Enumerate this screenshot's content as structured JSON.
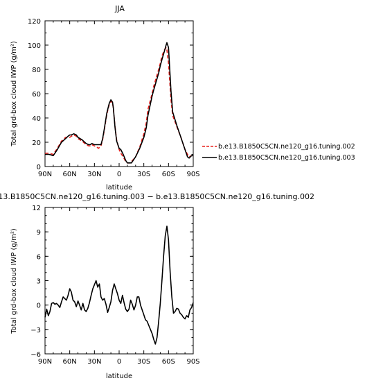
{
  "chart_data": [
    {
      "type": "line",
      "title": "JJA",
      "xlabel": "latitude",
      "ylabel": "Total grd-box cloud IWP (g/m²)",
      "xlim": [
        90,
        -90
      ],
      "ylim": [
        0,
        120
      ],
      "x_tick_values": [
        90,
        60,
        30,
        0,
        -30,
        -60,
        -90
      ],
      "x_tick_labels": [
        "90N",
        "60N",
        "30N",
        "0",
        "30S",
        "60S",
        "90S"
      ],
      "y_tick_labels": [
        "0",
        "20",
        "40",
        "60",
        "80",
        "100",
        "120"
      ],
      "legend_position": "right",
      "series": [
        {
          "name": "b.e13.B1850C5CN.ne120_g16.tuning.002",
          "color": "#e8201c",
          "dash": "dashed",
          "x": [
            90,
            85,
            80,
            78,
            75,
            70,
            65,
            62,
            60,
            58,
            55,
            52,
            50,
            45,
            40,
            37,
            35,
            33,
            30,
            27,
            25,
            22,
            20,
            18,
            15,
            12,
            10,
            8,
            7,
            6,
            5,
            3,
            0,
            -2,
            -5,
            -8,
            -10,
            -13,
            -15,
            -20,
            -25,
            -30,
            -33,
            -35,
            -40,
            -42,
            -45,
            -48,
            -50,
            -52,
            -55,
            -57,
            -58,
            -60,
            -63,
            -65,
            -70,
            -75,
            -80,
            -83,
            -85,
            -88,
            -90
          ],
          "y": [
            11,
            11,
            10,
            12,
            15,
            21,
            24,
            24,
            24,
            25,
            26,
            25,
            23,
            21,
            18,
            17,
            17,
            18,
            17,
            16,
            15,
            17,
            22,
            30,
            43,
            51,
            54,
            52,
            48,
            40,
            33,
            22,
            14,
            11,
            8,
            4,
            3,
            3,
            4,
            8,
            16,
            27,
            36,
            47,
            60,
            66,
            73,
            80,
            85,
            91,
            96,
            98,
            96,
            85,
            55,
            42,
            33,
            24,
            14,
            10,
            8,
            9,
            9
          ]
        },
        {
          "name": "b.e13.B1850C5CN.ne120_g16.tuning.003",
          "color": "#000000",
          "dash": "solid",
          "x": [
            90,
            85,
            80,
            78,
            75,
            70,
            65,
            62,
            60,
            58,
            55,
            52,
            50,
            45,
            40,
            37,
            35,
            33,
            30,
            27,
            25,
            22,
            20,
            18,
            15,
            12,
            10,
            8,
            7,
            6,
            5,
            3,
            0,
            -2,
            -5,
            -8,
            -10,
            -13,
            -15,
            -20,
            -25,
            -30,
            -33,
            -35,
            -40,
            -42,
            -45,
            -48,
            -50,
            -52,
            -55,
            -57,
            -58,
            -60,
            -63,
            -65,
            -70,
            -75,
            -80,
            -83,
            -85,
            -88,
            -90
          ],
          "y": [
            10,
            10,
            9,
            11,
            14,
            20,
            23,
            25,
            26,
            26,
            27,
            26,
            24,
            22,
            19,
            18,
            18,
            19,
            18,
            18,
            18,
            18,
            23,
            31,
            44,
            52,
            55,
            53,
            48,
            40,
            32,
            21,
            15,
            14,
            10,
            5,
            3,
            3,
            3,
            8,
            15,
            24,
            32,
            42,
            58,
            63,
            70,
            77,
            83,
            88,
            95,
            100,
            102,
            98,
            62,
            45,
            34,
            24,
            14,
            8,
            7,
            9,
            9
          ]
        }
      ]
    },
    {
      "type": "line",
      "title": "b.e13.B1850C5CN.ne120_g16.tuning.003 − b.e13.B1850C5CN.ne120_g16.tuning.002",
      "xlabel": "latitude",
      "ylabel": "Total grd-box cloud IWP (g/m²)",
      "xlim": [
        90,
        -90
      ],
      "ylim": [
        -6,
        12
      ],
      "x_tick_values": [
        90,
        60,
        30,
        0,
        -30,
        -60,
        -90
      ],
      "x_tick_labels": [
        "90N",
        "60N",
        "30N",
        "0",
        "30S",
        "60S",
        "90S"
      ],
      "y_tick_values": [
        -6,
        -3,
        0,
        3,
        6,
        9,
        12
      ],
      "y_tick_labels": [
        "−6",
        "−3",
        "0",
        "3",
        "6",
        "9",
        "12"
      ],
      "series": [
        {
          "color": "#000000",
          "x": [
            90,
            88,
            86,
            84,
            82,
            80,
            78,
            76,
            74,
            72,
            70,
            68,
            66,
            64,
            62,
            60,
            58,
            56,
            54,
            52,
            50,
            48,
            46,
            44,
            42,
            40,
            38,
            36,
            34,
            32,
            30,
            28,
            26,
            24,
            22,
            20,
            18,
            16,
            14,
            12,
            10,
            8,
            6,
            4,
            2,
            0,
            -2,
            -4,
            -6,
            -8,
            -10,
            -12,
            -14,
            -16,
            -18,
            -20,
            -22,
            -24,
            -26,
            -28,
            -30,
            -32,
            -34,
            -36,
            -38,
            -40,
            -42,
            -44,
            -46,
            -48,
            -50,
            -52,
            -54,
            -56,
            -58,
            -60,
            -62,
            -64,
            -66,
            -68,
            -70,
            -72,
            -74,
            -76,
            -78,
            -80,
            -82,
            -84,
            -86,
            -88,
            -90
          ],
          "y": [
            -1.5,
            -0.5,
            -1.3,
            -0.8,
            0.2,
            0.3,
            0.1,
            0.2,
            0.0,
            -0.3,
            0.4,
            1.0,
            0.8,
            0.6,
            1.2,
            2.0,
            1.6,
            0.6,
            0.4,
            -0.2,
            0.5,
            0.0,
            -0.6,
            0.2,
            -0.6,
            -0.8,
            -0.4,
            0.3,
            1.2,
            2.0,
            2.5,
            3.0,
            2.2,
            2.6,
            1.0,
            0.6,
            0.8,
            0.1,
            -0.9,
            -0.3,
            0.4,
            1.8,
            2.6,
            2.0,
            1.4,
            0.6,
            0.2,
            1.2,
            0.3,
            -0.5,
            -0.8,
            -0.5,
            0.6,
            0.1,
            -0.6,
            0.0,
            1.0,
            1.0,
            0.0,
            -0.6,
            -1.2,
            -1.8,
            -2.0,
            -2.5,
            -3.0,
            -3.5,
            -4.2,
            -4.8,
            -4.0,
            -2.0,
            0.2,
            3.0,
            6.0,
            8.5,
            9.7,
            8.0,
            4.0,
            1.0,
            -1.0,
            -0.8,
            -0.4,
            -0.5,
            -1.0,
            -1.2,
            -1.5,
            -1.7,
            -1.3,
            -1.5,
            -0.6,
            -0.3,
            0.3
          ]
        }
      ]
    }
  ]
}
